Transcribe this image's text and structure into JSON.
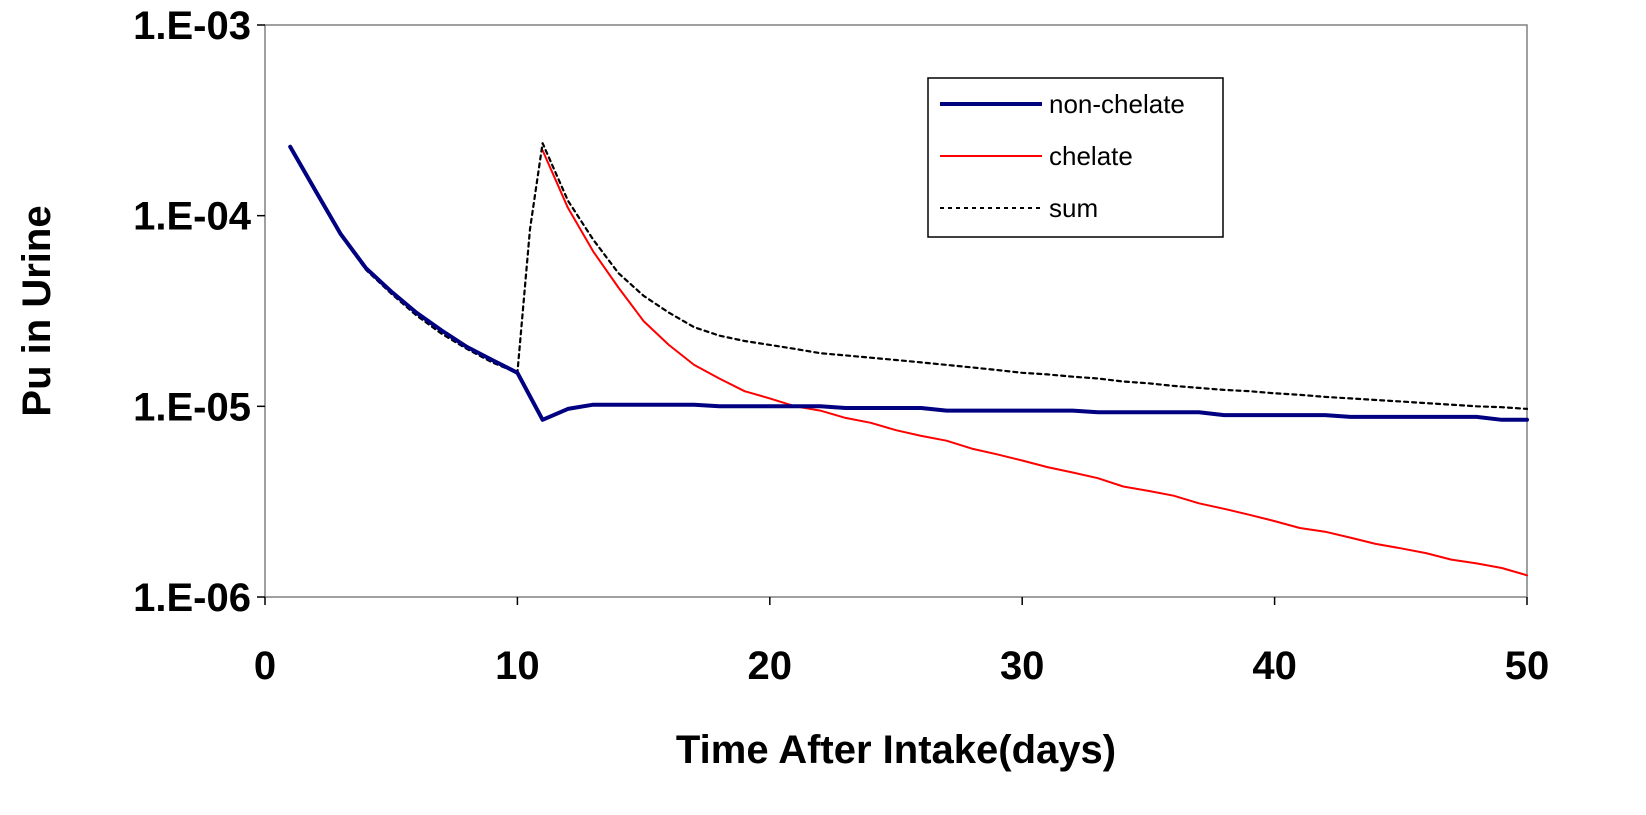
{
  "chart_data": {
    "type": "line",
    "y_scale": "log",
    "xlabel": "Time After Intake(days)",
    "ylabel": "Pu in Urine",
    "xlim": [
      0,
      50
    ],
    "ylim": [
      1e-06,
      0.001
    ],
    "x_ticks": [
      "0",
      "10",
      "20",
      "30",
      "40",
      "50"
    ],
    "y_ticks": [
      "1.E-06",
      "1.E-05",
      "1.E-04",
      "1.E-03"
    ],
    "grid": false,
    "legend_position": "top-right",
    "series": [
      {
        "name": "non-chelate",
        "color": "#000080",
        "style": "solid-thick",
        "points": [
          [
            1,
            0.00023
          ],
          [
            2,
            0.000135
          ],
          [
            3,
            8e-05
          ],
          [
            4,
            5.3e-05
          ],
          [
            5,
            4e-05
          ],
          [
            6,
            3.1e-05
          ],
          [
            7,
            2.5e-05
          ],
          [
            8,
            2.05e-05
          ],
          [
            9,
            1.75e-05
          ],
          [
            10,
            1.5e-05
          ],
          [
            11,
            8.5e-06
          ],
          [
            12,
            9.7e-06
          ],
          [
            13,
            1.02e-05
          ],
          [
            17,
            1.02e-05
          ],
          [
            18,
            1e-05
          ],
          [
            22,
            1e-05
          ],
          [
            23,
            9.8e-06
          ],
          [
            26,
            9.8e-06
          ],
          [
            27,
            9.5e-06
          ],
          [
            32,
            9.5e-06
          ],
          [
            33,
            9.3e-06
          ],
          [
            37,
            9.3e-06
          ],
          [
            38,
            9e-06
          ],
          [
            42,
            9e-06
          ],
          [
            43,
            8.8e-06
          ],
          [
            48,
            8.8e-06
          ],
          [
            49,
            8.5e-06
          ],
          [
            50,
            8.5e-06
          ]
        ]
      },
      {
        "name": "chelate",
        "color": "#ff0000",
        "style": "solid-thin",
        "points": [
          [
            11,
            0.00022
          ],
          [
            12,
            0.00011
          ],
          [
            13,
            6.5e-05
          ],
          [
            14,
            4.2e-05
          ],
          [
            15,
            2.8e-05
          ],
          [
            16,
            2.1e-05
          ],
          [
            17,
            1.65e-05
          ],
          [
            18,
            1.4e-05
          ],
          [
            19,
            1.2e-05
          ],
          [
            20,
            1.1e-05
          ],
          [
            21,
            1e-05
          ],
          [
            22,
            9.5e-06
          ],
          [
            23,
            8.7e-06
          ],
          [
            24,
            8.2e-06
          ],
          [
            25,
            7.5e-06
          ],
          [
            26,
            7e-06
          ],
          [
            27,
            6.6e-06
          ],
          [
            28,
            6e-06
          ],
          [
            29,
            5.6e-06
          ],
          [
            30,
            5.2e-06
          ],
          [
            31,
            4.8e-06
          ],
          [
            32,
            4.5e-06
          ],
          [
            33,
            4.2e-06
          ],
          [
            34,
            3.8e-06
          ],
          [
            35,
            3.6e-06
          ],
          [
            36,
            3.4e-06
          ],
          [
            37,
            3.1e-06
          ],
          [
            38,
            2.9e-06
          ],
          [
            39,
            2.7e-06
          ],
          [
            40,
            2.5e-06
          ],
          [
            41,
            2.3e-06
          ],
          [
            42,
            2.2e-06
          ],
          [
            43,
            2.05e-06
          ],
          [
            44,
            1.9e-06
          ],
          [
            45,
            1.8e-06
          ],
          [
            46,
            1.7e-06
          ],
          [
            47,
            1.57e-06
          ],
          [
            48,
            1.5e-06
          ],
          [
            49,
            1.42e-06
          ],
          [
            50,
            1.3e-06
          ]
        ]
      },
      {
        "name": "sum",
        "color": "#000000",
        "style": "dotted",
        "points": [
          [
            1,
            0.00023
          ],
          [
            2,
            0.000133
          ],
          [
            3,
            7.9e-05
          ],
          [
            4,
            5.2e-05
          ],
          [
            5,
            3.9e-05
          ],
          [
            6,
            3e-05
          ],
          [
            7,
            2.4e-05
          ],
          [
            8,
            2e-05
          ],
          [
            9,
            1.7e-05
          ],
          [
            10,
            1.5e-05
          ],
          [
            10.5,
            8.5e-05
          ],
          [
            11,
            0.00024
          ],
          [
            12,
            0.00012
          ],
          [
            13,
            7.5e-05
          ],
          [
            14,
            5e-05
          ],
          [
            15,
            3.8e-05
          ],
          [
            16,
            3.1e-05
          ],
          [
            17,
            2.6e-05
          ],
          [
            18,
            2.35e-05
          ],
          [
            19,
            2.2e-05
          ],
          [
            20,
            2.1e-05
          ],
          [
            21,
            2e-05
          ],
          [
            22,
            1.9e-05
          ],
          [
            23,
            1.85e-05
          ],
          [
            24,
            1.8e-05
          ],
          [
            25,
            1.75e-05
          ],
          [
            26,
            1.7e-05
          ],
          [
            27,
            1.65e-05
          ],
          [
            28,
            1.6e-05
          ],
          [
            29,
            1.55e-05
          ],
          [
            30,
            1.5e-05
          ],
          [
            31,
            1.47e-05
          ],
          [
            32,
            1.43e-05
          ],
          [
            33,
            1.4e-05
          ],
          [
            34,
            1.35e-05
          ],
          [
            35,
            1.32e-05
          ],
          [
            36,
            1.28e-05
          ],
          [
            37,
            1.25e-05
          ],
          [
            38,
            1.22e-05
          ],
          [
            39,
            1.2e-05
          ],
          [
            40,
            1.17e-05
          ],
          [
            41,
            1.15e-05
          ],
          [
            42,
            1.12e-05
          ],
          [
            43,
            1.1e-05
          ],
          [
            44,
            1.08e-05
          ],
          [
            45,
            1.06e-05
          ],
          [
            46,
            1.04e-05
          ],
          [
            47,
            1.02e-05
          ],
          [
            48,
            1e-05
          ],
          [
            49,
            9.9e-06
          ],
          [
            50,
            9.7e-06
          ]
        ]
      }
    ]
  }
}
